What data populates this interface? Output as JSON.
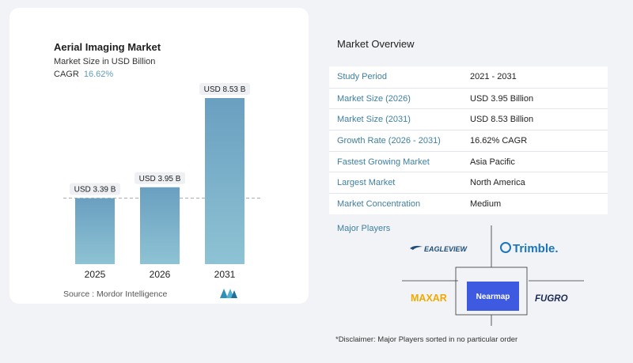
{
  "chart": {
    "title": "Aerial Imaging Market",
    "subtitle": "Market Size in USD Billion",
    "cagr_label": "CAGR",
    "cagr_value": "16.62%",
    "source": "Source :  Mordor Intelligence"
  },
  "chart_data": {
    "type": "bar",
    "categories": [
      "2025",
      "2026",
      "2031"
    ],
    "values": [
      3.39,
      3.95,
      8.53
    ],
    "data_labels": [
      "USD 3.39 B",
      "USD 3.95 B",
      "USD 8.53 B"
    ],
    "title": "Aerial Imaging Market",
    "subtitle": "Market Size in USD Billion",
    "xlabel": "",
    "ylabel": "",
    "ylim": [
      0,
      9
    ],
    "reference_line": 3.39,
    "grid": false
  },
  "overview": {
    "title": "Market Overview",
    "rows": [
      {
        "label": "Study Period",
        "value": "2021 - 2031"
      },
      {
        "label": "Market Size (2026)",
        "value": "USD 3.95 Billion"
      },
      {
        "label": "Market Size (2031)",
        "value": "USD 8.53 Billion"
      },
      {
        "label": "Growth Rate (2026 - 2031)",
        "value": "16.62% CAGR"
      },
      {
        "label": "Fastest Growing Market",
        "value": "Asia Pacific"
      },
      {
        "label": "Largest Market",
        "value": "North America"
      },
      {
        "label": "Market Concentration",
        "value": "Medium"
      }
    ],
    "players_title": "Major Players",
    "players": [
      "EAGLEVIEW",
      "Trimble.",
      "MAXAR",
      "Nearmap",
      "FUGRO"
    ],
    "disclaimer": "*Disclaimer: Major Players sorted in no particular order"
  },
  "colors": {
    "bar_top": "#6a9fc0",
    "bar_bottom": "#8ec3d4",
    "accent": "#3f7fa0",
    "nearmap": "#3d5ae0",
    "maxar": "#f2a900"
  }
}
